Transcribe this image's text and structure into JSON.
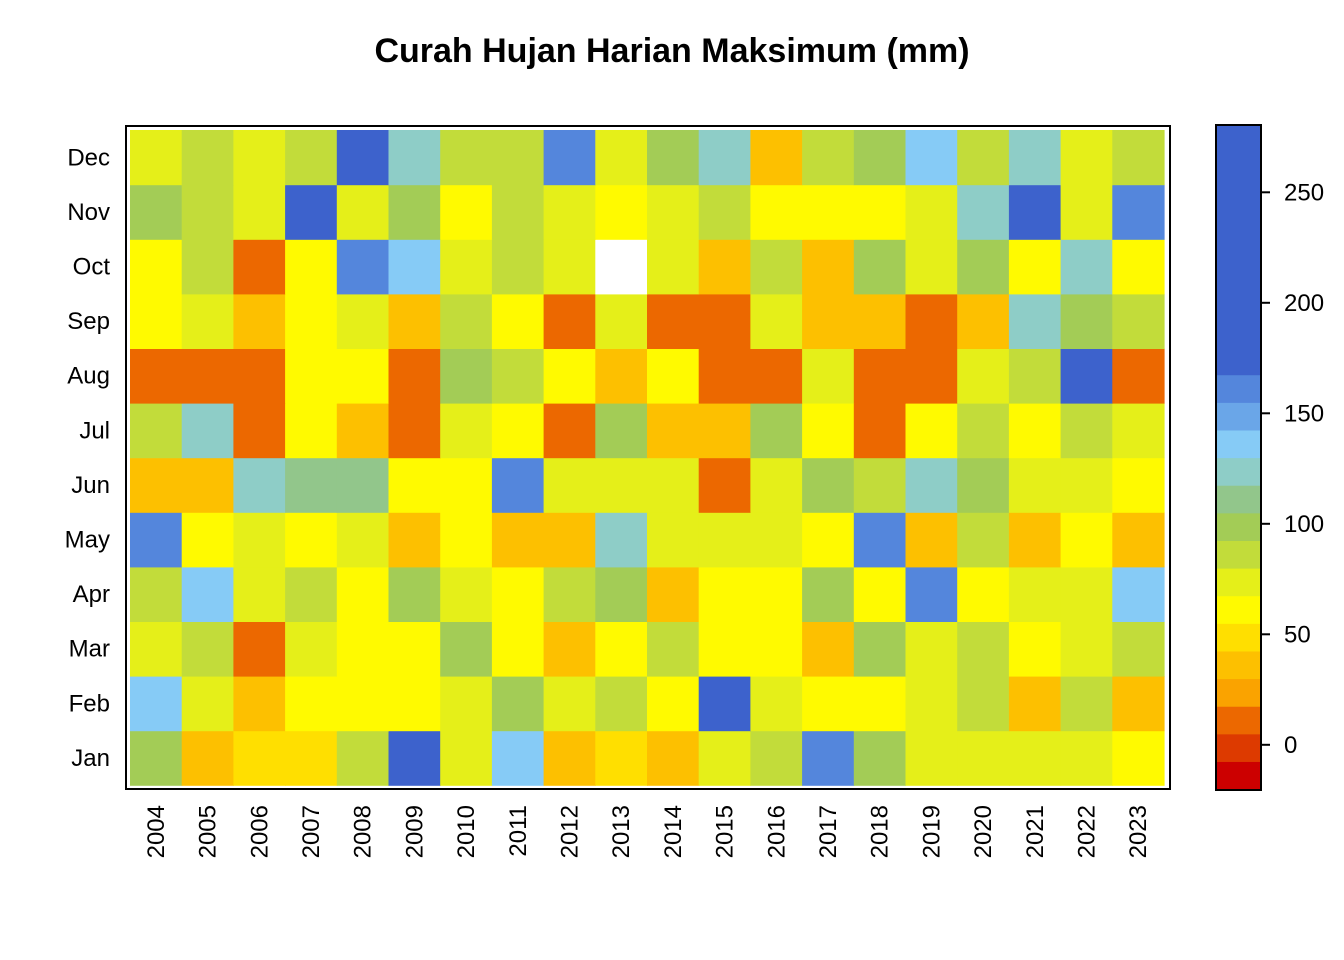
{
  "chart_data": {
    "type": "heatmap",
    "title": "Curah Hujan Harian Maksimum (mm)",
    "xlabel": "",
    "ylabel": "",
    "x": [
      "2004",
      "2005",
      "2006",
      "2007",
      "2008",
      "2009",
      "2010",
      "2011",
      "2012",
      "2013",
      "2014",
      "2015",
      "2016",
      "2017",
      "2018",
      "2019",
      "2020",
      "2021",
      "2022",
      "2023"
    ],
    "y": [
      "Jan",
      "Feb",
      "Mar",
      "Apr",
      "May",
      "Jun",
      "Jul",
      "Aug",
      "Sep",
      "Oct",
      "Nov",
      "Dec"
    ],
    "values": [
      [
        100,
        30,
        50,
        50,
        85,
        235,
        75,
        140,
        30,
        50,
        30,
        75,
        85,
        160,
        100,
        75,
        75,
        75,
        75,
        60
      ],
      [
        140,
        70,
        30,
        55,
        55,
        55,
        70,
        100,
        70,
        85,
        55,
        270,
        70,
        60,
        60,
        75,
        85,
        30,
        85,
        30
      ],
      [
        70,
        85,
        15,
        70,
        55,
        55,
        100,
        55,
        30,
        55,
        85,
        55,
        55,
        30,
        100,
        75,
        85,
        55,
        70,
        85
      ],
      [
        85,
        140,
        70,
        85,
        55,
        100,
        70,
        55,
        85,
        100,
        30,
        60,
        60,
        100,
        55,
        160,
        55,
        70,
        70,
        140
      ],
      [
        160,
        55,
        75,
        55,
        70,
        30,
        55,
        30,
        30,
        120,
        70,
        70,
        70,
        55,
        160,
        30,
        85,
        30,
        55,
        30
      ],
      [
        30,
        30,
        120,
        105,
        105,
        55,
        55,
        160,
        70,
        70,
        70,
        15,
        70,
        100,
        85,
        120,
        100,
        70,
        70,
        60
      ],
      [
        85,
        120,
        15,
        55,
        30,
        15,
        70,
        55,
        15,
        100,
        30,
        30,
        100,
        55,
        15,
        55,
        85,
        55,
        85,
        70
      ],
      [
        5,
        15,
        5,
        55,
        55,
        15,
        100,
        85,
        55,
        30,
        55,
        15,
        15,
        70,
        15,
        15,
        70,
        85,
        200,
        15
      ],
      [
        55,
        70,
        30,
        55,
        70,
        30,
        85,
        55,
        15,
        70,
        5,
        5,
        70,
        30,
        30,
        15,
        30,
        120,
        100,
        85
      ],
      [
        55,
        85,
        15,
        55,
        160,
        140,
        70,
        85,
        70,
        null,
        70,
        30,
        85,
        30,
        100,
        70,
        100,
        55,
        120,
        55
      ],
      [
        100,
        85,
        70,
        200,
        70,
        100,
        55,
        85,
        70,
        55,
        70,
        85,
        55,
        55,
        55,
        70,
        120,
        180,
        70,
        160
      ],
      [
        70,
        85,
        70,
        85,
        225,
        120,
        85,
        85,
        160,
        70,
        100,
        120,
        30,
        85,
        100,
        140,
        85,
        120,
        70,
        85
      ]
    ],
    "colorbar": {
      "min": -20,
      "max": 280,
      "step": 12.5,
      "ticks": [
        0,
        50,
        100,
        150,
        200,
        250
      ],
      "tick_labels": [
        "0",
        "50",
        "100",
        "150",
        "200",
        "250"
      ],
      "colors": [
        "#cc0000",
        "#dd3a00",
        "#ec6800",
        "#faa300",
        "#fdc000",
        "#ffdf00",
        "#fffa00",
        "#e5ef19",
        "#c2dc3a",
        "#a3cc56",
        "#92c68b",
        "#8ecdc7",
        "#86cbf6",
        "#6aa6e8",
        "#5486dc",
        "#3d62cc"
      ]
    }
  }
}
